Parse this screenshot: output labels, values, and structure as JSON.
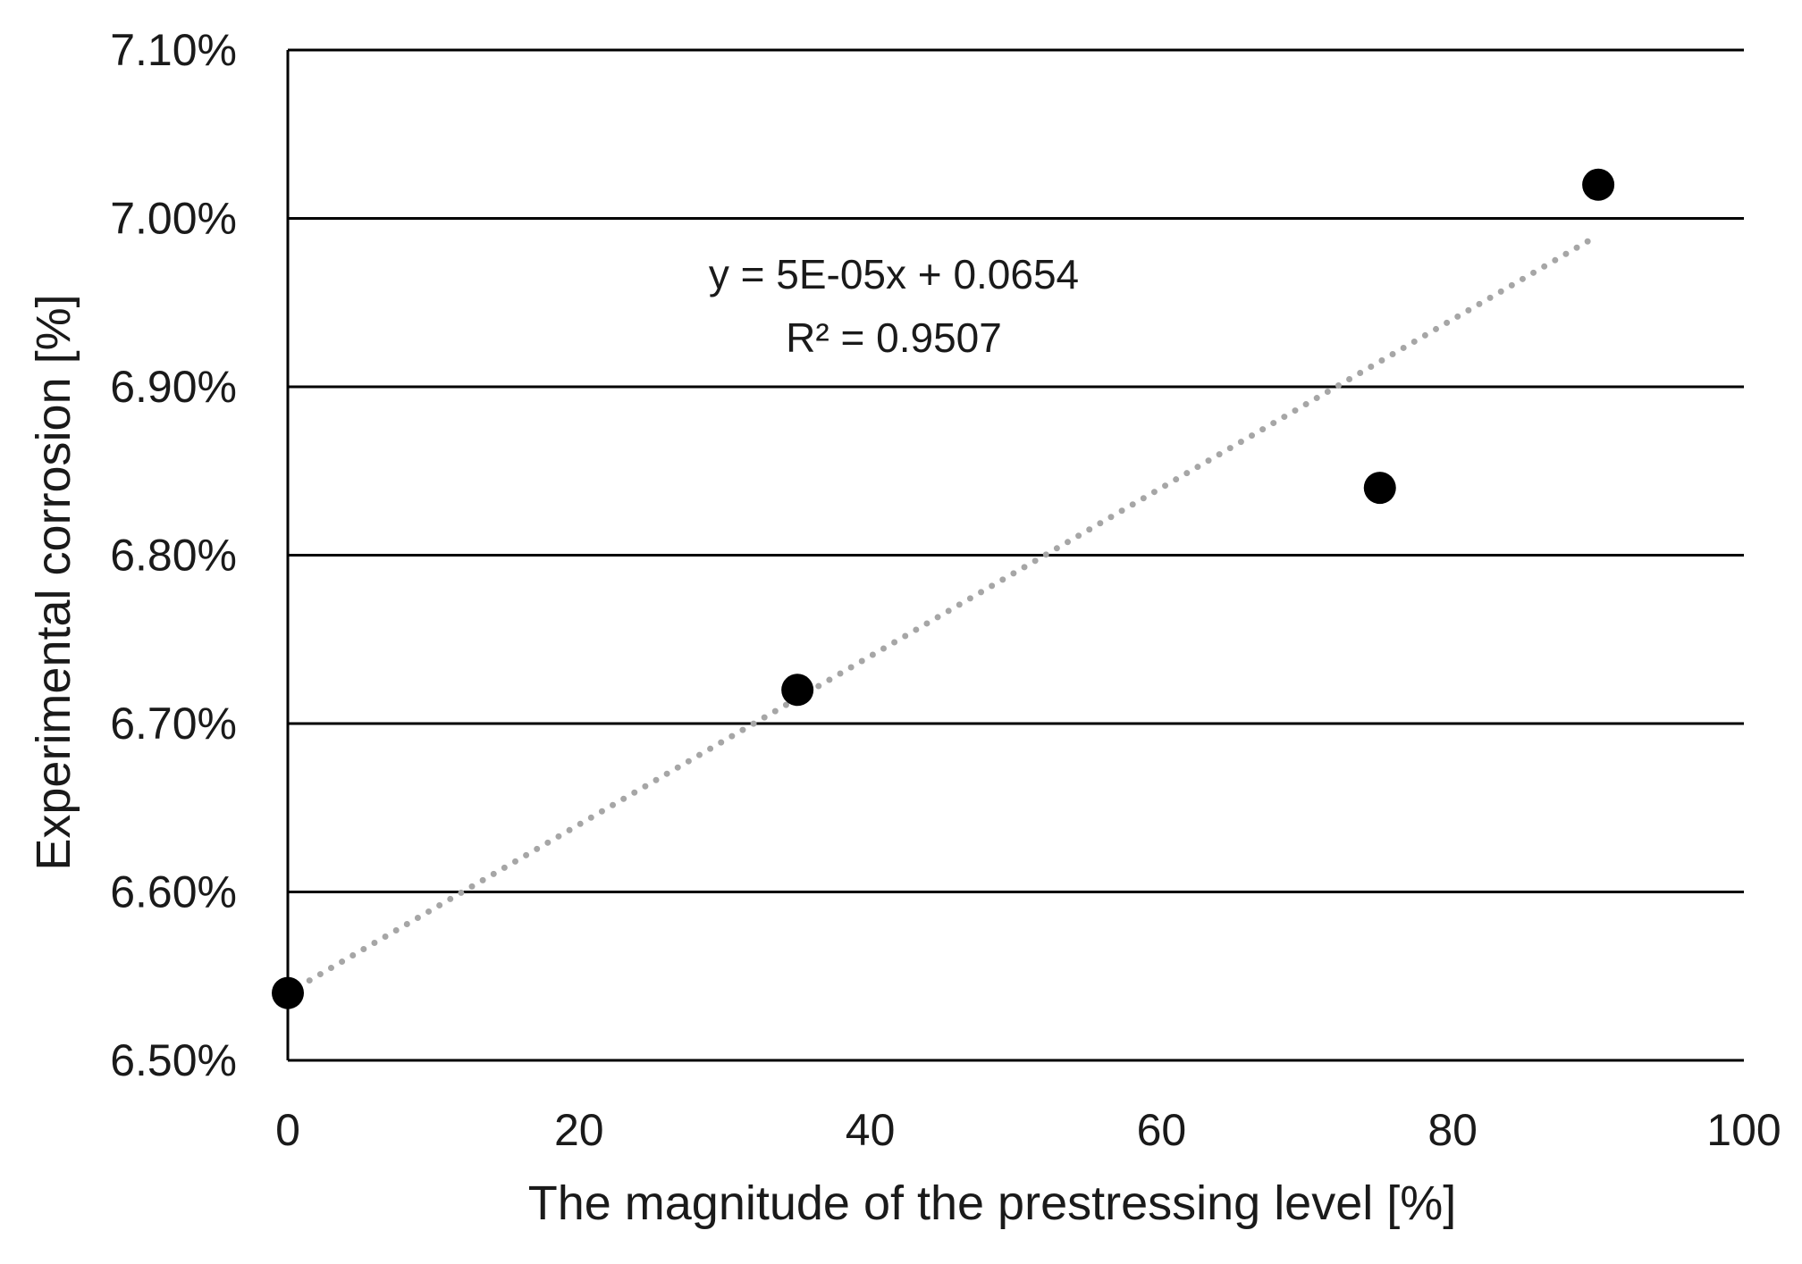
{
  "chart_data": {
    "type": "scatter",
    "title": "",
    "xlabel": "The magnitude of the prestressing level [%]",
    "ylabel": "Experimental corrosion [%]",
    "xlim": [
      0,
      100
    ],
    "ylim": [
      0.065,
      0.071
    ],
    "x_ticks": [
      0,
      20,
      40,
      60,
      80,
      100
    ],
    "x_tick_labels": [
      "0",
      "20",
      "40",
      "60",
      "80",
      "100"
    ],
    "y_ticks": [
      0.065,
      0.066,
      0.067,
      0.068,
      0.069,
      0.07,
      0.071
    ],
    "y_tick_labels": [
      "6.50%",
      "6.60%",
      "6.70%",
      "6.80%",
      "6.90%",
      "7.00%",
      "7.10%"
    ],
    "grid": "horizontal",
    "series": [
      {
        "name": "Experimental corrosion",
        "x": [
          0,
          35,
          75,
          90
        ],
        "y": [
          0.0654,
          0.0672,
          0.0684,
          0.0702
        ],
        "marker": "circle",
        "color": "#000000"
      }
    ],
    "trendline": {
      "type": "linear",
      "slope": 5e-05,
      "intercept": 0.0654,
      "x_range": [
        0,
        90
      ],
      "style": "dotted",
      "color": "#a6a6a6"
    },
    "annotations": {
      "equation": "y = 5E-05x + 0.0654",
      "r_squared": "R² = 0.9507"
    }
  }
}
